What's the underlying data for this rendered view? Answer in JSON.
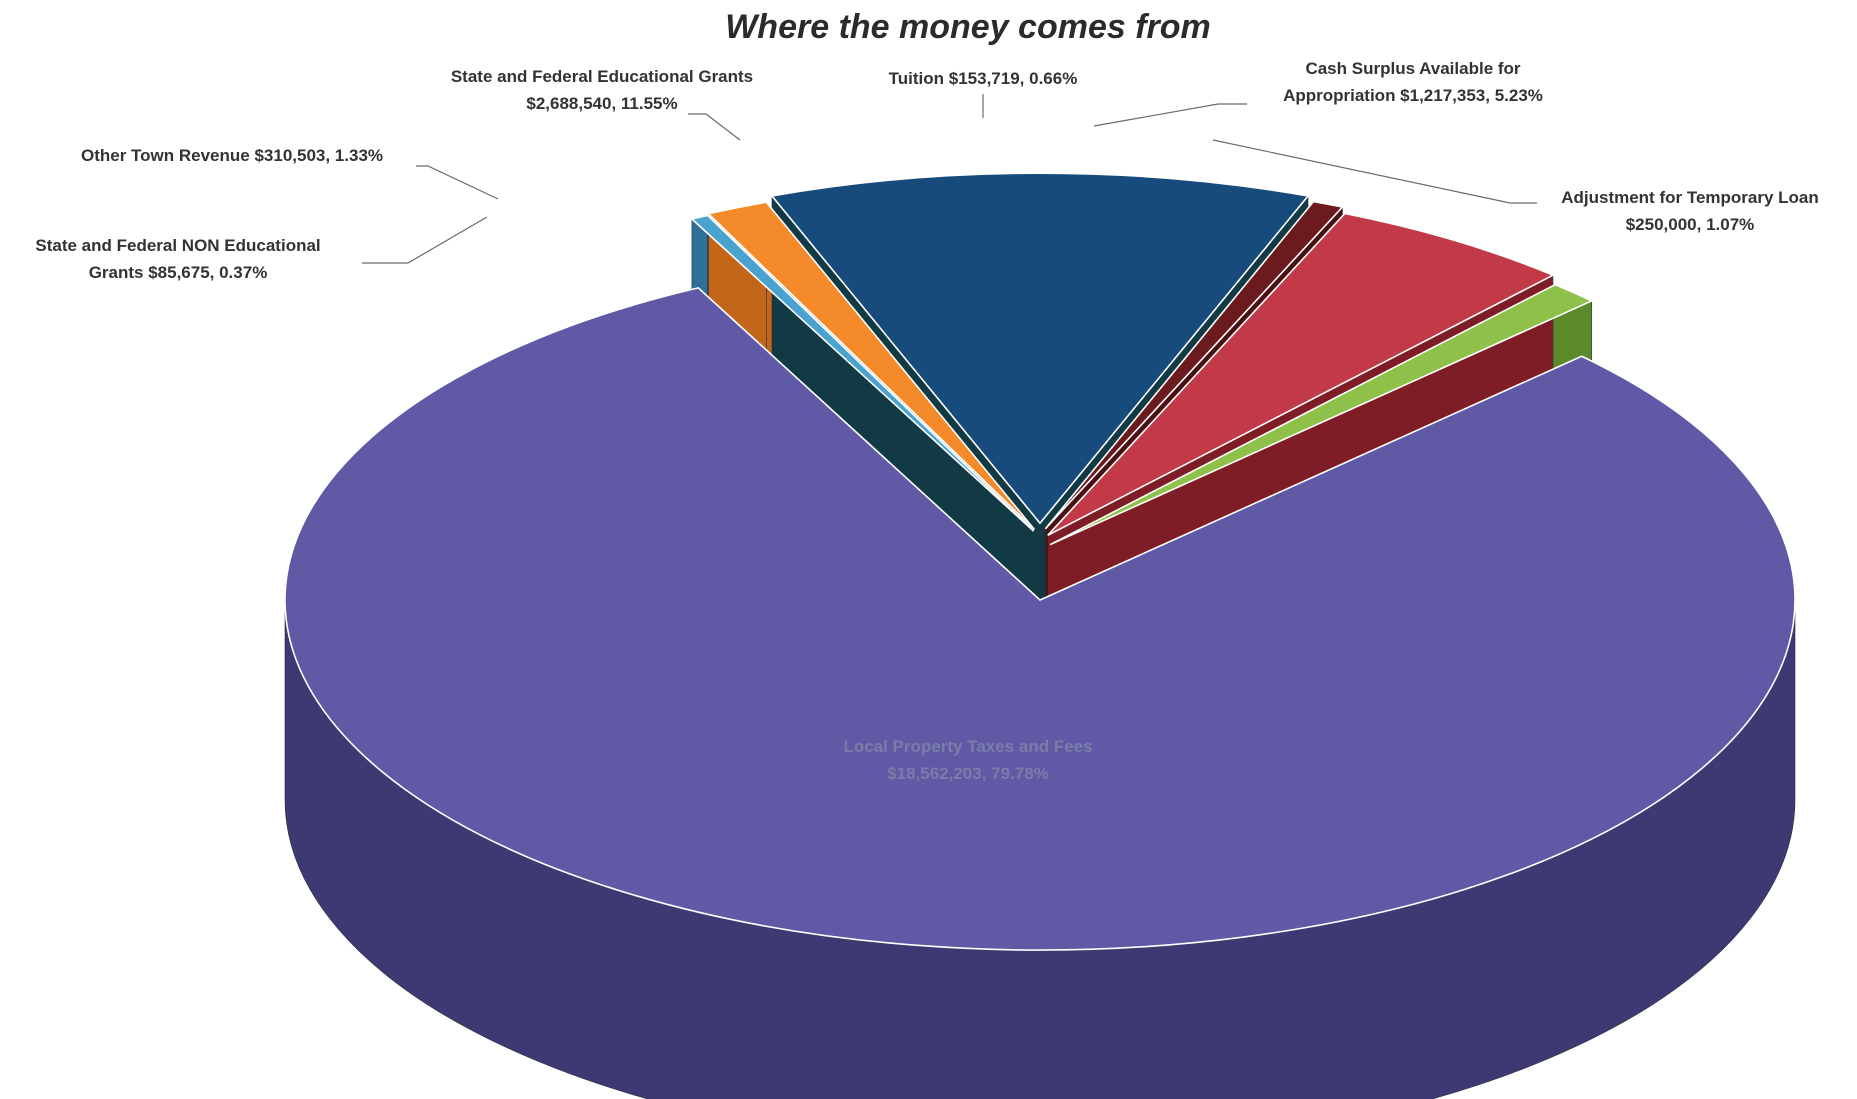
{
  "chart_data": {
    "type": "pie",
    "title": "Where the money comes from",
    "slices": [
      {
        "id": "local-property-taxes",
        "label_lines": [
          "Local Property Taxes and Fees",
          "$18,562,203, 79.78%"
        ],
        "amount": 18562203,
        "percent": 79.78,
        "color": "#5f59a6",
        "side_color": "#3c3973",
        "exploded": false
      },
      {
        "id": "non-educational-grants",
        "label_lines": [
          "State and Federal NON Educational",
          "Grants  $85,675, 0.37%"
        ],
        "amount": 85675,
        "percent": 0.37,
        "color": "#4aa3cf",
        "side_color": "#2f7196",
        "exploded": true
      },
      {
        "id": "other-town-revenue",
        "label_lines": [
          "Other Town Revenue $310,503, 1.33%"
        ],
        "amount": 310503,
        "percent": 1.33,
        "color": "#f58a2a",
        "side_color": "#c2661a",
        "exploded": true
      },
      {
        "id": "educational-grants",
        "label_lines": [
          "State and Federal Educational Grants",
          "$2,688,540, 11.55%"
        ],
        "amount": 2688540,
        "percent": 11.55,
        "color": "#174b7c",
        "side_color": "#123a45",
        "exploded": true
      },
      {
        "id": "tuition",
        "label_lines": [
          "Tuition  $153,719, 0.66%"
        ],
        "amount": 153719,
        "percent": 0.66,
        "color": "#6b1a1d",
        "side_color": "#4a1013",
        "exploded": true
      },
      {
        "id": "cash-surplus",
        "label_lines": [
          "Cash Surplus Available for",
          "Appropriation   $1,217,353, 5.23%"
        ],
        "amount": 1217353,
        "percent": 5.23,
        "color": "#c23a48",
        "side_color": "#7f1d26",
        "exploded": true
      },
      {
        "id": "temporary-loan",
        "label_lines": [
          "Adjustment for Temporary Loan",
          "$250,000, 1.07%"
        ],
        "amount": 250000,
        "percent": 1.07,
        "color": "#8fc04a",
        "side_color": "#5a8a2a",
        "exploded": true
      }
    ]
  }
}
